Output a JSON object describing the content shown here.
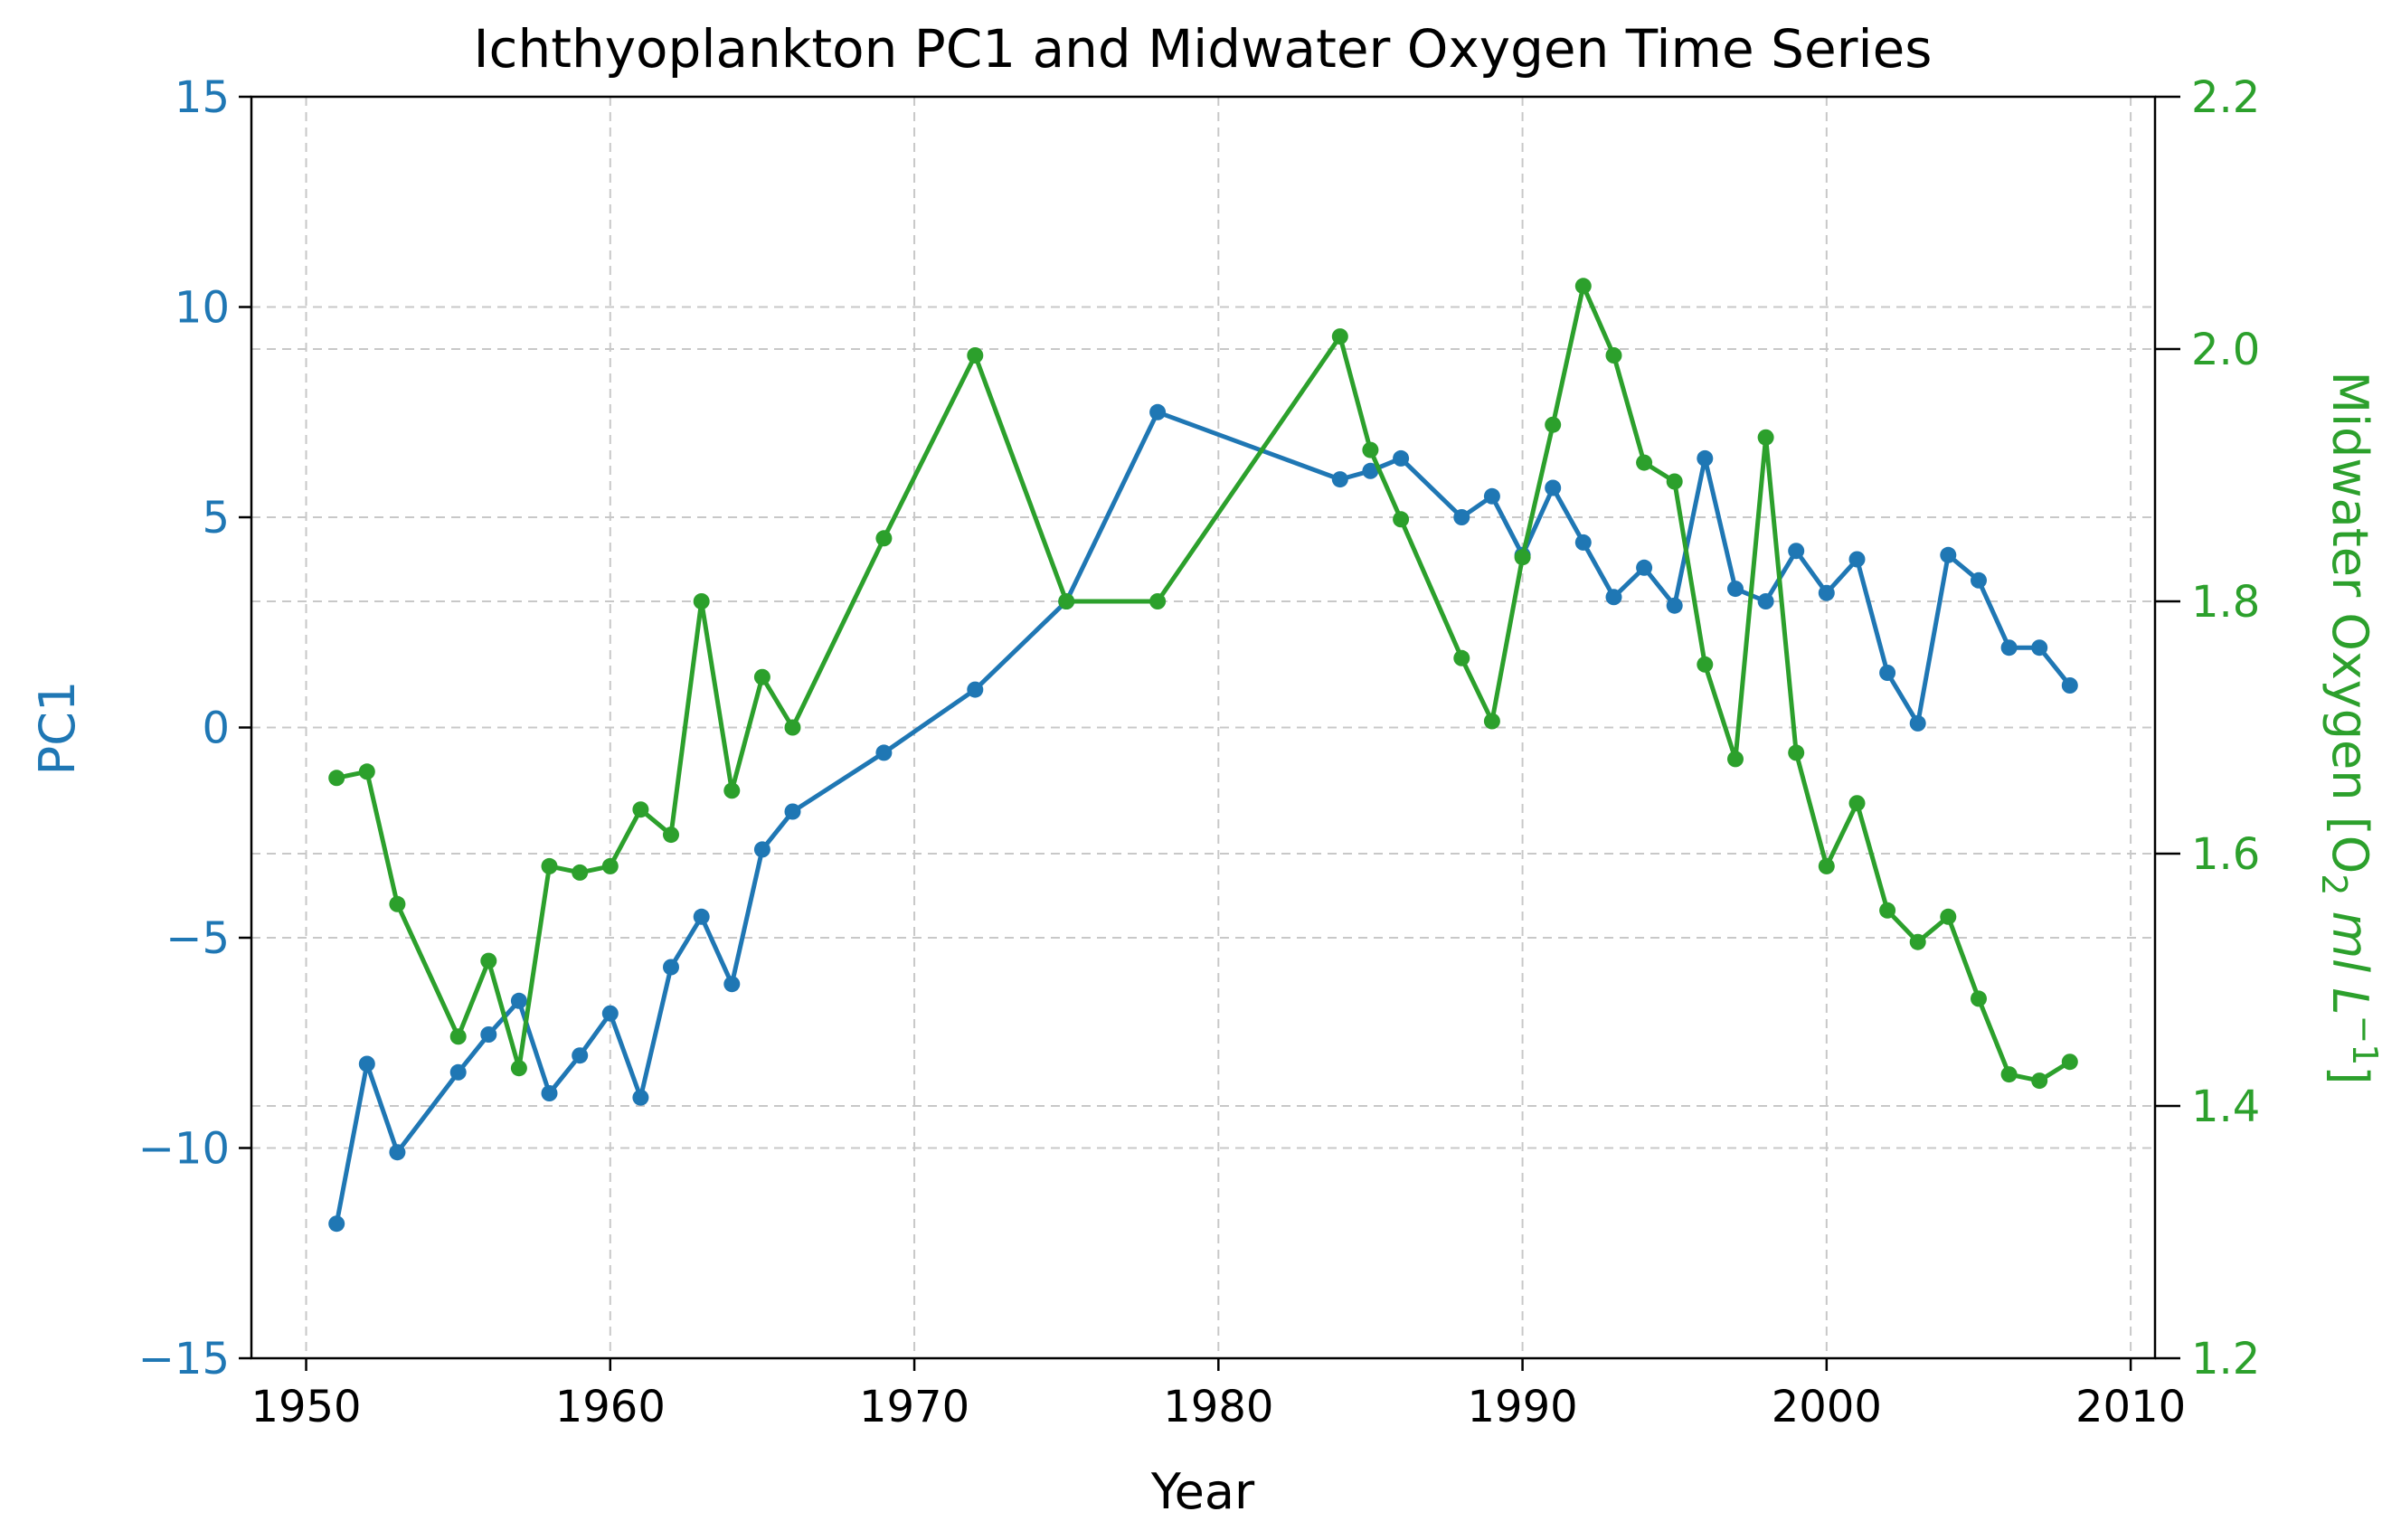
{
  "chart_data": {
    "type": "line",
    "title": "Ichthyoplankton PC1 and Midwater Oxygen Time Series",
    "xlabel": "Year",
    "xlim": [
      1948.2,
      2010.8
    ],
    "xticks": [
      1950,
      1960,
      1970,
      1980,
      1990,
      2000,
      2010
    ],
    "grid": true,
    "axes": {
      "left": {
        "label": "PC1",
        "ylim": [
          -15,
          15
        ],
        "ticks": [
          -15,
          -10,
          -5,
          0,
          5,
          10,
          15
        ],
        "tick_labels": [
          "−15",
          "−10",
          "−5",
          "0",
          "5",
          "10",
          "15"
        ],
        "color": "#1f77b4"
      },
      "right": {
        "label_main": "Midwater Oxygen [O",
        "label_sub": "2",
        "label_italic": " ml L",
        "label_sup": "−1",
        "label_close": "]",
        "ylim": [
          1.2,
          2.2
        ],
        "ticks": [
          1.2,
          1.4,
          1.6,
          1.8,
          2.0,
          2.2
        ],
        "tick_labels": [
          "1.2",
          "1.4",
          "1.6",
          "1.8",
          "2.0",
          "2.2"
        ],
        "color": "#2ca02c"
      }
    },
    "series": [
      {
        "axis": "left",
        "color": "#1f77b4",
        "x": [
          1951,
          1952,
          1953,
          1955,
          1956,
          1957,
          1958,
          1959,
          1960,
          1961,
          1962,
          1963,
          1964,
          1965,
          1966,
          1969,
          1972,
          1975,
          1978,
          1984,
          1985,
          1986,
          1988,
          1989,
          1990,
          1991,
          1992,
          1993,
          1994,
          1995,
          1996,
          1997,
          1998,
          1999,
          2000,
          2001,
          2002,
          2003,
          2004,
          2005,
          2006,
          2007,
          2008
        ],
        "y": [
          -11.8,
          -8.0,
          -10.1,
          -8.2,
          -7.3,
          -6.5,
          -8.7,
          -7.8,
          -6.8,
          -8.8,
          -5.7,
          -4.5,
          -6.1,
          -2.9,
          -2.0,
          -0.6,
          0.9,
          3.0,
          7.5,
          5.9,
          6.1,
          6.4,
          5.0,
          5.5,
          4.1,
          5.7,
          4.4,
          3.1,
          3.8,
          2.9,
          6.4,
          3.3,
          3.0,
          4.2,
          3.2,
          4.0,
          1.3,
          0.1,
          4.1,
          3.5,
          1.9,
          1.9,
          1.0
        ]
      },
      {
        "axis": "right",
        "color": "#2ca02c",
        "x": [
          1951,
          1952,
          1953,
          1955,
          1956,
          1957,
          1958,
          1959,
          1960,
          1961,
          1962,
          1963,
          1964,
          1965,
          1966,
          1969,
          1972,
          1975,
          1978,
          1984,
          1985,
          1986,
          1988,
          1989,
          1990,
          1991,
          1992,
          1993,
          1994,
          1995,
          1996,
          1997,
          1998,
          1999,
          2000,
          2001,
          2002,
          2003,
          2004,
          2005,
          2006,
          2007,
          2008
        ],
        "y": [
          1.66,
          1.665,
          1.56,
          1.455,
          1.515,
          1.43,
          1.59,
          1.585,
          1.59,
          1.635,
          1.615,
          1.8,
          1.65,
          1.74,
          1.7,
          1.85,
          1.995,
          1.8,
          1.8,
          2.01,
          1.92,
          1.865,
          1.755,
          1.705,
          1.835,
          1.94,
          2.05,
          1.995,
          1.91,
          1.895,
          1.75,
          1.675,
          1.93,
          1.68,
          1.59,
          1.64,
          1.555,
          1.53,
          1.55,
          1.485,
          1.425,
          1.42,
          1.435
        ]
      }
    ]
  }
}
